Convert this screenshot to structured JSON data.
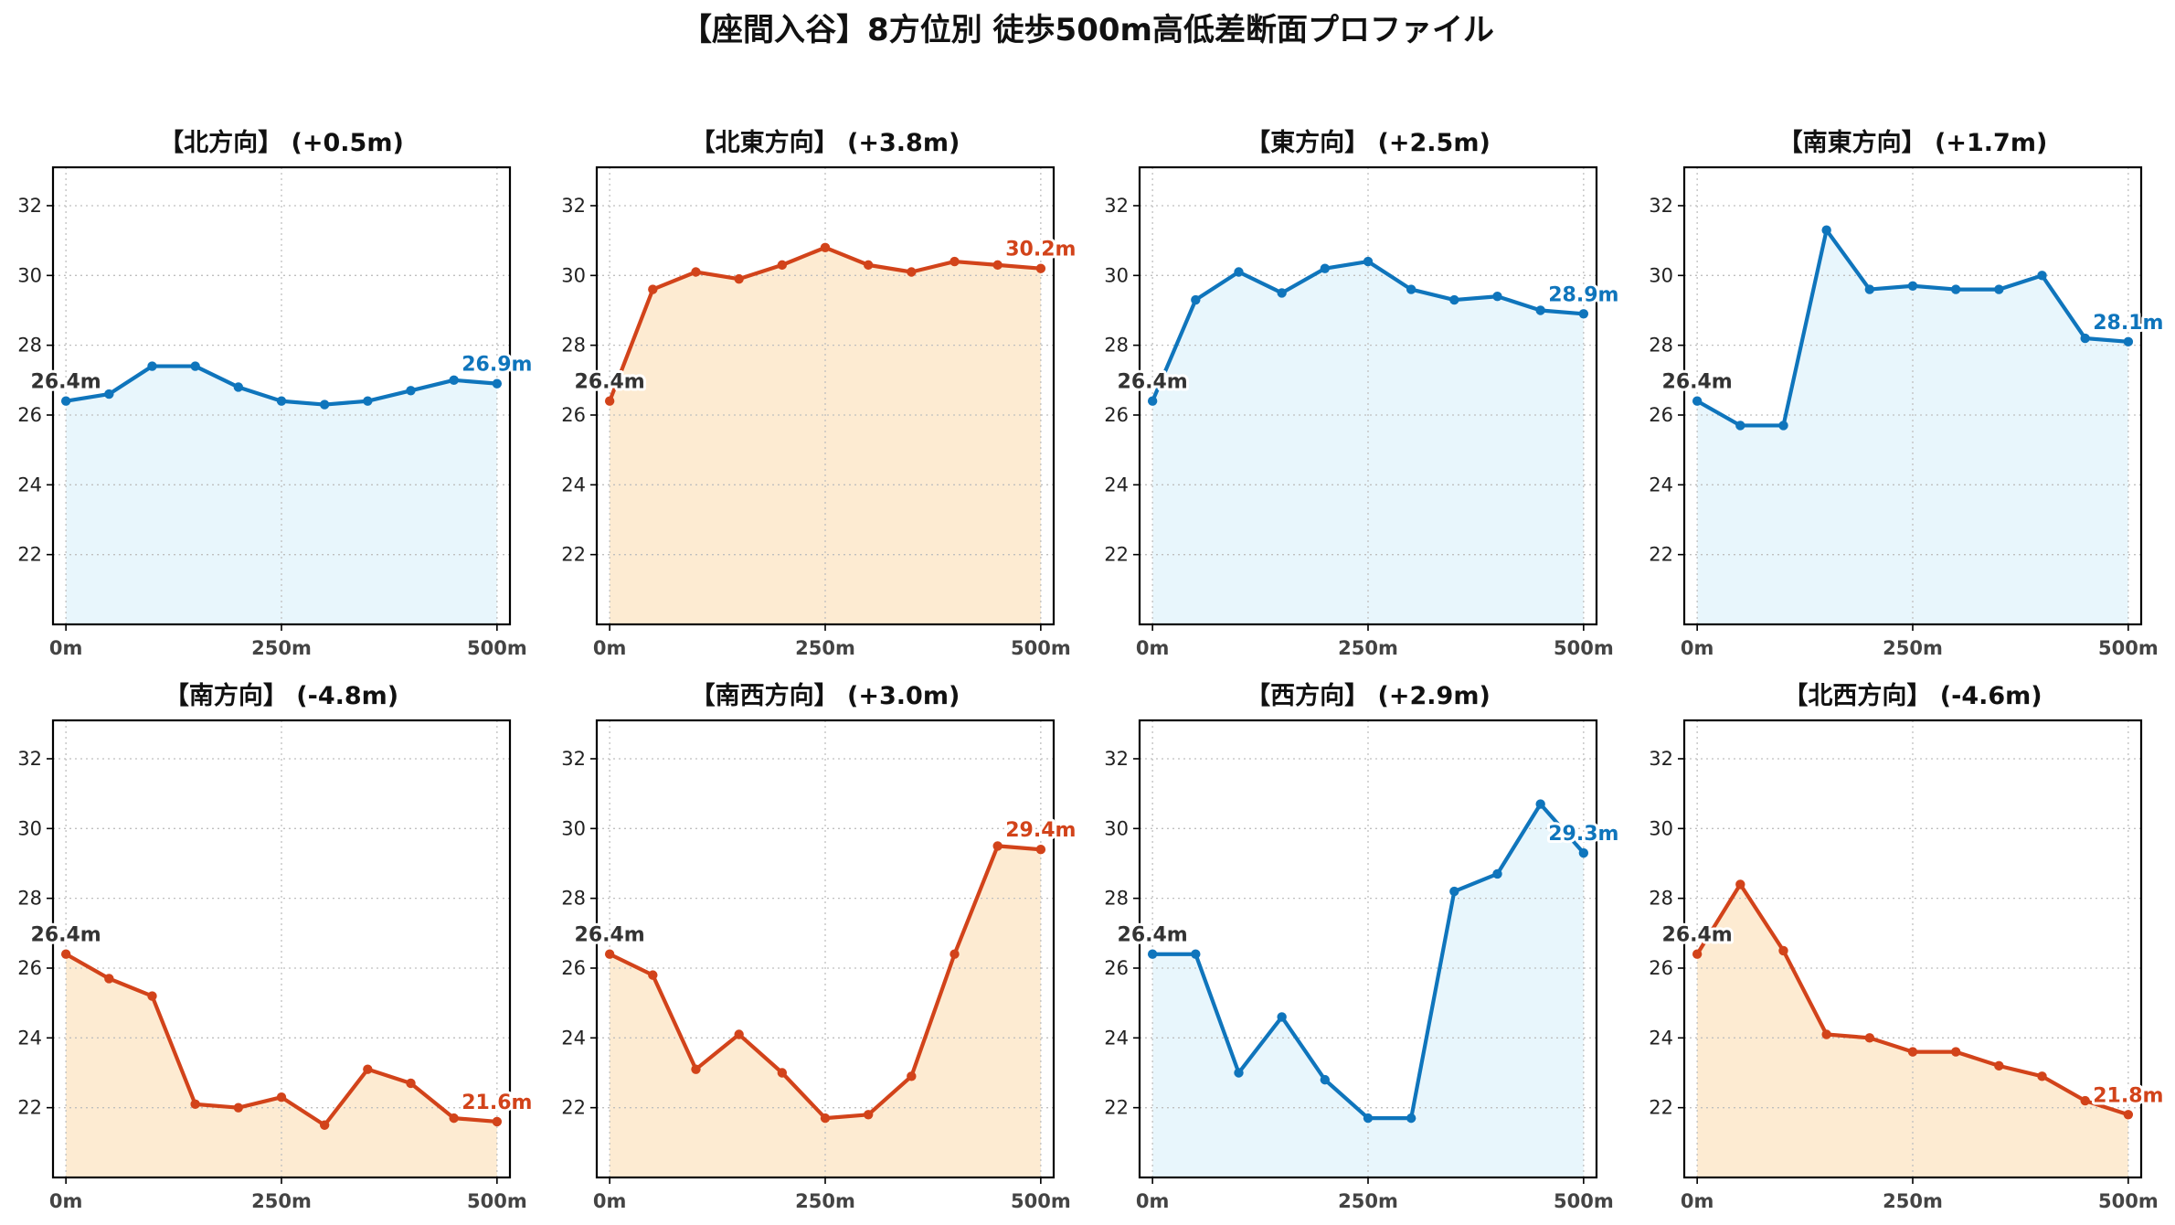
{
  "title": "【座間入谷】8方位別 徒歩500m高低差断面プロファイル",
  "colors": {
    "up_line": "#d2431a",
    "up_fill": "#fdebd2",
    "down_line": "#0f75bc",
    "down_fill": "#e8f6fc",
    "start_label": "#333333"
  },
  "chart_data": [
    {
      "type": "area",
      "title": "【北方向】 (+0.5m)",
      "color": "down",
      "x": [
        0,
        50,
        100,
        150,
        200,
        250,
        300,
        350,
        400,
        450,
        500
      ],
      "y": [
        26.4,
        26.6,
        27.4,
        27.4,
        26.8,
        26.4,
        26.3,
        26.4,
        26.7,
        27.0,
        26.9
      ],
      "start_label": "26.4m",
      "end_label": "26.9m",
      "xticks": [
        {
          "v": 0,
          "label": "0m"
        },
        {
          "v": 250,
          "label": "250m"
        },
        {
          "v": 500,
          "label": "500m"
        }
      ],
      "yticks": [
        22,
        24,
        26,
        28,
        30,
        32
      ],
      "xlim": [
        -15,
        515
      ],
      "ylim": [
        20,
        33.1
      ],
      "grid": true
    },
    {
      "type": "area",
      "title": "【北東方向】 (+3.8m)",
      "color": "up",
      "x": [
        0,
        50,
        100,
        150,
        200,
        250,
        300,
        350,
        400,
        450,
        500
      ],
      "y": [
        26.4,
        29.6,
        30.1,
        29.9,
        30.3,
        30.8,
        30.3,
        30.1,
        30.4,
        30.3,
        30.2
      ],
      "start_label": "26.4m",
      "end_label": "30.2m",
      "xticks": [
        {
          "v": 0,
          "label": "0m"
        },
        {
          "v": 250,
          "label": "250m"
        },
        {
          "v": 500,
          "label": "500m"
        }
      ],
      "yticks": [
        22,
        24,
        26,
        28,
        30,
        32
      ],
      "xlim": [
        -15,
        515
      ],
      "ylim": [
        20,
        33.1
      ],
      "grid": true
    },
    {
      "type": "area",
      "title": "【東方向】 (+2.5m)",
      "color": "down",
      "x": [
        0,
        50,
        100,
        150,
        200,
        250,
        300,
        350,
        400,
        450,
        500
      ],
      "y": [
        26.4,
        29.3,
        30.1,
        29.5,
        30.2,
        30.4,
        29.6,
        29.3,
        29.4,
        29.0,
        28.9
      ],
      "start_label": "26.4m",
      "end_label": "28.9m",
      "xticks": [
        {
          "v": 0,
          "label": "0m"
        },
        {
          "v": 250,
          "label": "250m"
        },
        {
          "v": 500,
          "label": "500m"
        }
      ],
      "yticks": [
        22,
        24,
        26,
        28,
        30,
        32
      ],
      "xlim": [
        -15,
        515
      ],
      "ylim": [
        20,
        33.1
      ],
      "grid": true
    },
    {
      "type": "area",
      "title": "【南東方向】 (+1.7m)",
      "color": "down",
      "x": [
        0,
        50,
        100,
        150,
        200,
        250,
        300,
        350,
        400,
        450,
        500
      ],
      "y": [
        26.4,
        25.7,
        25.7,
        31.3,
        29.6,
        29.7,
        29.6,
        29.6,
        30.0,
        28.2,
        28.1
      ],
      "start_label": "26.4m",
      "end_label": "28.1m",
      "xticks": [
        {
          "v": 0,
          "label": "0m"
        },
        {
          "v": 250,
          "label": "250m"
        },
        {
          "v": 500,
          "label": "500m"
        }
      ],
      "yticks": [
        22,
        24,
        26,
        28,
        30,
        32
      ],
      "xlim": [
        -15,
        515
      ],
      "ylim": [
        20,
        33.1
      ],
      "grid": true
    },
    {
      "type": "area",
      "title": "【南方向】 (-4.8m)",
      "color": "up",
      "x": [
        0,
        50,
        100,
        150,
        200,
        250,
        300,
        350,
        400,
        450,
        500
      ],
      "y": [
        26.4,
        25.7,
        25.2,
        22.1,
        22.0,
        22.3,
        21.5,
        23.1,
        22.7,
        21.7,
        21.6
      ],
      "start_label": "26.4m",
      "end_label": "21.6m",
      "xticks": [
        {
          "v": 0,
          "label": "0m"
        },
        {
          "v": 250,
          "label": "250m"
        },
        {
          "v": 500,
          "label": "500m"
        }
      ],
      "yticks": [
        22,
        24,
        26,
        28,
        30,
        32
      ],
      "xlim": [
        -15,
        515
      ],
      "ylim": [
        20,
        33.1
      ],
      "grid": true
    },
    {
      "type": "area",
      "title": "【南西方向】 (+3.0m)",
      "color": "up",
      "x": [
        0,
        50,
        100,
        150,
        200,
        250,
        300,
        350,
        400,
        450,
        500
      ],
      "y": [
        26.4,
        25.8,
        23.1,
        24.1,
        23.0,
        21.7,
        21.8,
        22.9,
        26.4,
        29.5,
        29.4
      ],
      "start_label": "26.4m",
      "end_label": "29.4m",
      "xticks": [
        {
          "v": 0,
          "label": "0m"
        },
        {
          "v": 250,
          "label": "250m"
        },
        {
          "v": 500,
          "label": "500m"
        }
      ],
      "yticks": [
        22,
        24,
        26,
        28,
        30,
        32
      ],
      "xlim": [
        -15,
        515
      ],
      "ylim": [
        20,
        33.1
      ],
      "grid": true
    },
    {
      "type": "area",
      "title": "【西方向】 (+2.9m)",
      "color": "down",
      "x": [
        0,
        50,
        100,
        150,
        200,
        250,
        300,
        350,
        400,
        450,
        500
      ],
      "y": [
        26.4,
        26.4,
        23.0,
        24.6,
        22.8,
        21.7,
        21.7,
        28.2,
        28.7,
        30.7,
        29.3
      ],
      "start_label": "26.4m",
      "end_label": "29.3m",
      "xticks": [
        {
          "v": 0,
          "label": "0m"
        },
        {
          "v": 250,
          "label": "250m"
        },
        {
          "v": 500,
          "label": "500m"
        }
      ],
      "yticks": [
        22,
        24,
        26,
        28,
        30,
        32
      ],
      "xlim": [
        -15,
        515
      ],
      "ylim": [
        20,
        33.1
      ],
      "grid": true
    },
    {
      "type": "area",
      "title": "【北西方向】 (-4.6m)",
      "color": "up",
      "x": [
        0,
        50,
        100,
        150,
        200,
        250,
        300,
        350,
        400,
        450,
        500
      ],
      "y": [
        26.4,
        28.4,
        26.5,
        24.1,
        24.0,
        23.6,
        23.6,
        23.2,
        22.9,
        22.2,
        21.8
      ],
      "start_label": "26.4m",
      "end_label": "21.8m",
      "xticks": [
        {
          "v": 0,
          "label": "0m"
        },
        {
          "v": 250,
          "label": "250m"
        },
        {
          "v": 500,
          "label": "500m"
        }
      ],
      "yticks": [
        22,
        24,
        26,
        28,
        30,
        32
      ],
      "xlim": [
        -15,
        515
      ],
      "ylim": [
        20,
        33.1
      ],
      "grid": true
    }
  ]
}
